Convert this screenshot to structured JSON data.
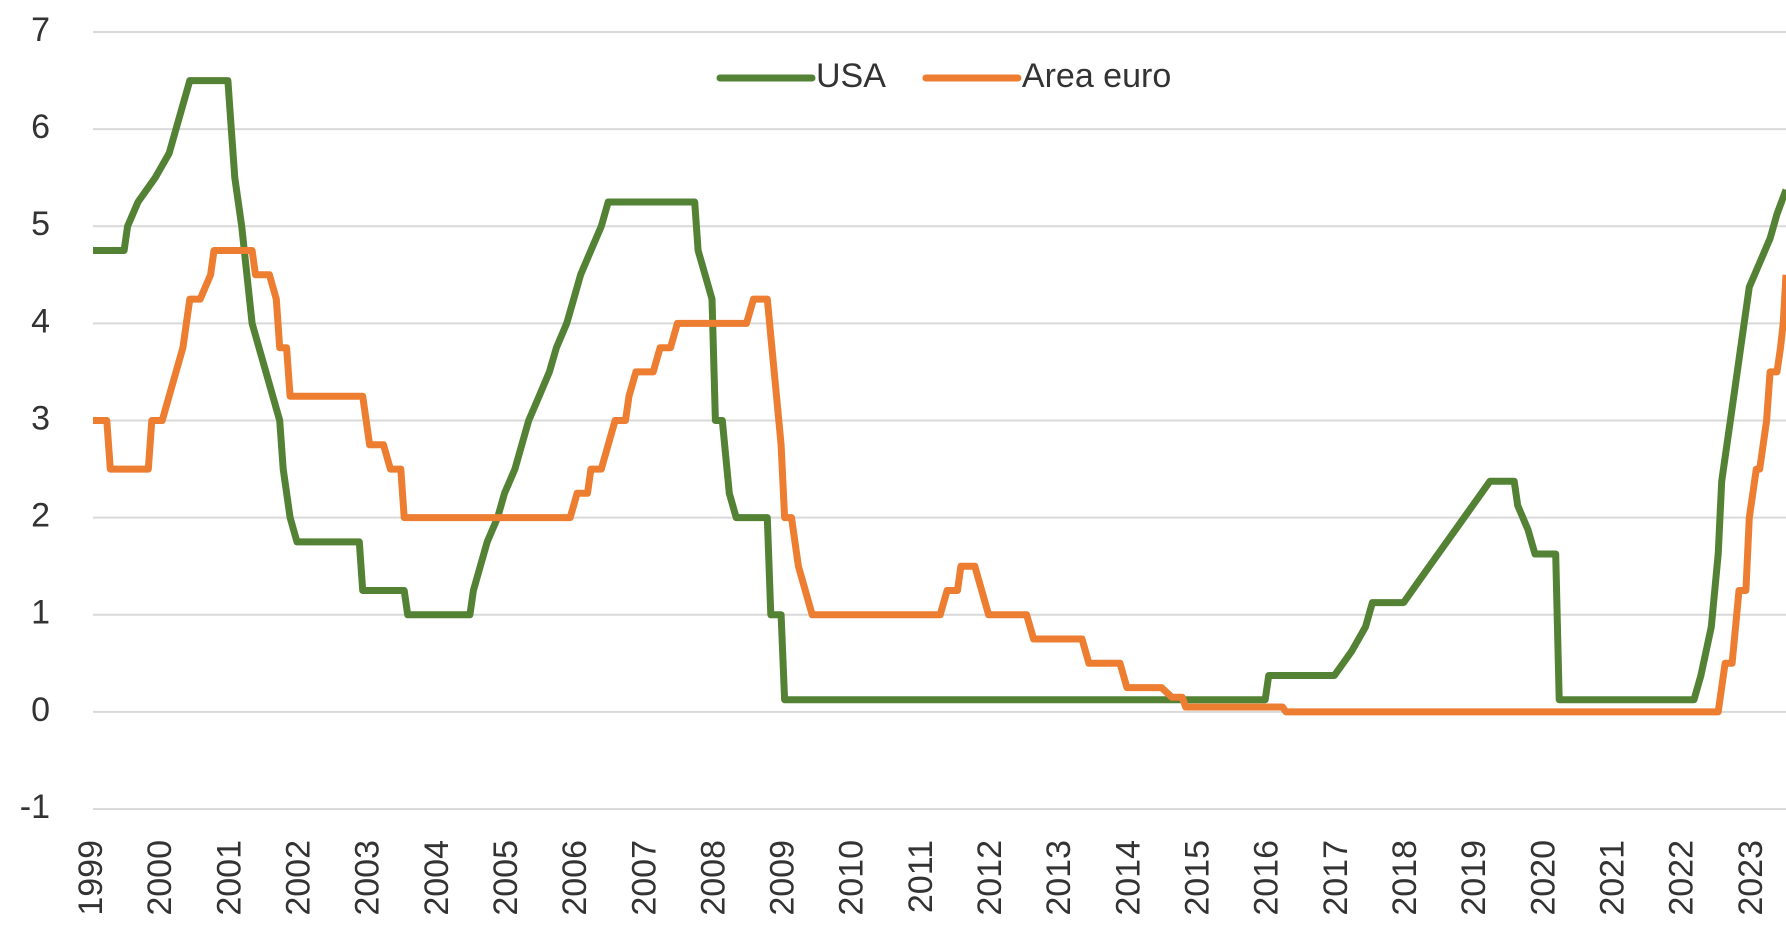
{
  "chart_data": {
    "type": "line",
    "legend": "top",
    "grid": true,
    "xlim": [
      1999,
      2023.48
    ],
    "ylim": [
      -1,
      7
    ],
    "xticks": [
      1999,
      2000,
      2001,
      2002,
      2003,
      2004,
      2005,
      2006,
      2007,
      2008,
      2009,
      2010,
      2011,
      2012,
      2013,
      2014,
      2015,
      2016,
      2017,
      2018,
      2019,
      2020,
      2021,
      2022,
      2023
    ],
    "yticks": [
      -1,
      0,
      1,
      2,
      3,
      4,
      5,
      6,
      7
    ],
    "series": [
      {
        "name": "USA",
        "color": "#548235",
        "x": [
          1999,
          1999.45,
          1999.5,
          1999.65,
          1999.9,
          2000.1,
          2000.2,
          2000.4,
          2000.95,
          2001.0,
          2001.05,
          2001.15,
          2001.3,
          2001.4,
          2001.5,
          2001.7,
          2001.75,
          2001.85,
          2001.95,
          2002.85,
          2002.9,
          2003.5,
          2003.55,
          2004.45,
          2004.5,
          2004.6,
          2004.7,
          2004.85,
          2004.95,
          2005.1,
          2005.2,
          2005.3,
          2005.45,
          2005.6,
          2005.7,
          2005.85,
          2005.95,
          2006.05,
          2006.2,
          2006.35,
          2006.45,
          2007.7,
          2007.75,
          2007.85,
          2007.95,
          2008.0,
          2008.1,
          2008.2,
          2008.3,
          2008.75,
          2008.8,
          2008.95,
          2009.0,
          2015.95,
          2016.0,
          2016.95,
          2017.2,
          2017.4,
          2017.5,
          2017.95,
          2018.2,
          2018.45,
          2018.7,
          2018.95,
          2019.2,
          2019.55,
          2019.6,
          2019.75,
          2019.85,
          2020.15,
          2020.2,
          2022.15,
          2022.25,
          2022.4,
          2022.5,
          2022.55,
          2022.7,
          2022.85,
          2022.95,
          2023.1,
          2023.25,
          2023.35,
          2023.48
        ],
        "values": [
          4.75,
          4.75,
          5.0,
          5.25,
          5.5,
          5.75,
          6.0,
          6.5,
          6.5,
          6.0,
          5.5,
          5.0,
          4.0,
          3.75,
          3.5,
          3.0,
          2.5,
          2.0,
          1.75,
          1.75,
          1.25,
          1.25,
          1.0,
          1.0,
          1.25,
          1.5,
          1.75,
          2.0,
          2.25,
          2.5,
          2.75,
          3.0,
          3.25,
          3.5,
          3.75,
          4.0,
          4.25,
          4.5,
          4.75,
          5.0,
          5.25,
          5.25,
          4.75,
          4.5,
          4.25,
          3.0,
          3.0,
          2.25,
          2.0,
          2.0,
          1.0,
          1.0,
          0.125,
          0.125,
          0.375,
          0.375,
          0.625,
          0.875,
          1.125,
          1.125,
          1.375,
          1.625,
          1.875,
          2.125,
          2.375,
          2.375,
          2.125,
          1.875,
          1.625,
          1.625,
          0.125,
          0.125,
          0.375,
          0.875,
          1.625,
          2.375,
          3.125,
          3.875,
          4.375,
          4.625,
          4.875,
          5.125,
          5.375
        ]
      },
      {
        "name": "Area euro",
        "color": "#ed7d31",
        "x": [
          1999,
          1999.2,
          1999.25,
          1999.8,
          1999.85,
          2000.0,
          2000.1,
          2000.2,
          2000.3,
          2000.4,
          2000.55,
          2000.7,
          2000.75,
          2001.3,
          2001.35,
          2001.55,
          2001.65,
          2001.7,
          2001.8,
          2001.85,
          2002.9,
          2003.0,
          2003.2,
          2003.3,
          2003.45,
          2003.5,
          2005.9,
          2006.0,
          2006.15,
          2006.2,
          2006.35,
          2006.45,
          2006.55,
          2006.7,
          2006.75,
          2006.85,
          2007.1,
          2007.2,
          2007.35,
          2007.45,
          2008.45,
          2008.55,
          2008.75,
          2008.85,
          2008.95,
          2009.0,
          2009.1,
          2009.2,
          2009.3,
          2009.4,
          2011.25,
          2011.35,
          2011.5,
          2011.55,
          2011.75,
          2011.85,
          2011.95,
          2012.5,
          2012.6,
          2013.3,
          2013.4,
          2013.85,
          2013.95,
          2014.45,
          2014.6,
          2014.75,
          2014.8,
          2016.2,
          2016.25,
          2022.5,
          2022.6,
          2022.7,
          2022.8,
          2022.9,
          2022.95,
          2023.05,
          2023.1,
          2023.2,
          2023.25,
          2023.35,
          2023.4,
          2023.44,
          2023.48
        ],
        "values": [
          3.0,
          3.0,
          2.5,
          2.5,
          3.0,
          3.0,
          3.25,
          3.5,
          3.75,
          4.25,
          4.25,
          4.5,
          4.75,
          4.75,
          4.5,
          4.5,
          4.25,
          3.75,
          3.75,
          3.25,
          3.25,
          2.75,
          2.75,
          2.5,
          2.5,
          2.0,
          2.0,
          2.25,
          2.25,
          2.5,
          2.5,
          2.75,
          3.0,
          3.0,
          3.25,
          3.5,
          3.5,
          3.75,
          3.75,
          4.0,
          4.0,
          4.25,
          4.25,
          3.5,
          2.75,
          2.0,
          2.0,
          1.5,
          1.25,
          1.0,
          1.0,
          1.25,
          1.25,
          1.5,
          1.5,
          1.25,
          1.0,
          1.0,
          0.75,
          0.75,
          0.5,
          0.5,
          0.25,
          0.25,
          0.15,
          0.15,
          0.05,
          0.05,
          0,
          0,
          0.5,
          0.5,
          1.25,
          1.25,
          2.0,
          2.5,
          2.5,
          3.0,
          3.5,
          3.5,
          3.75,
          4.0,
          4.5
        ]
      }
    ]
  }
}
